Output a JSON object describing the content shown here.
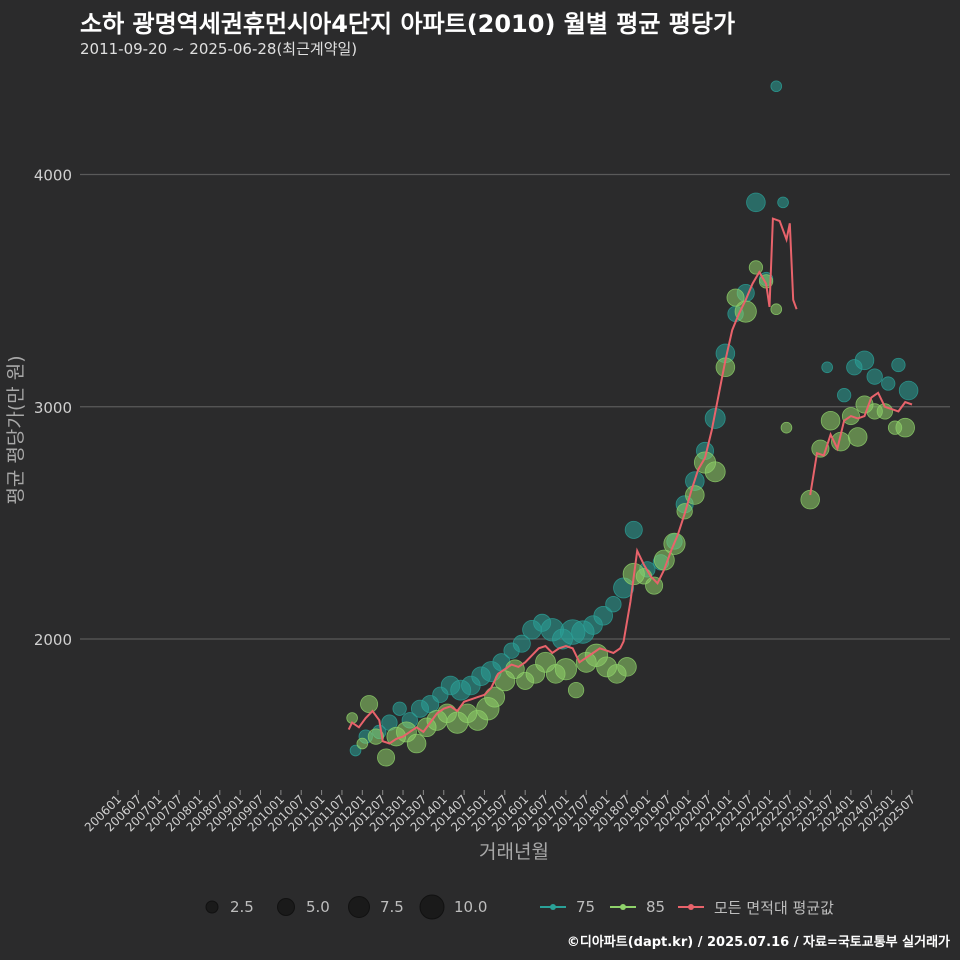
{
  "title": "소하 광명역세권휴먼시아4단지 아파트(2010) 월별 평균 평당가",
  "subtitle": "2011-09-20 ~ 2025-06-28(최근계약일)",
  "caption": "©디아파트(dapt.kr) / 2025.07.16 / 자료=국토교통부 실거래가",
  "colors": {
    "background": "#2b2b2c",
    "grid": "#5a5a5a",
    "series_75": "#2aa198",
    "series_85": "#8fd26a",
    "avg_line": "#e8636b"
  },
  "chart_data": {
    "type": "scatter",
    "xlabel": "거래년월",
    "ylabel": "평균 평당가(만 원)",
    "ylim": [
      1350,
      4450
    ],
    "yticks": [
      2000,
      3000,
      4000
    ],
    "ytick_labels": [
      "2000",
      "3000",
      "4000"
    ],
    "x_range": [
      "2006-01",
      "2025-07"
    ],
    "xtick_labels": [
      "200601",
      "200607",
      "200701",
      "200707",
      "200801",
      "200807",
      "200901",
      "200907",
      "201001",
      "201007",
      "201101",
      "201107",
      "201201",
      "201207",
      "201301",
      "201307",
      "201401",
      "201407",
      "201501",
      "201507",
      "201601",
      "201607",
      "201701",
      "201707",
      "201801",
      "201807",
      "201901",
      "201907",
      "202001",
      "202007",
      "202101",
      "202107",
      "202201",
      "202207",
      "202301",
      "202307",
      "202401",
      "202407",
      "202501",
      "202507"
    ],
    "size_legend": {
      "values": [
        2.5,
        5.0,
        7.5,
        10.0
      ],
      "labels": [
        "2.5",
        "5.0",
        "7.5",
        "10.0"
      ]
    },
    "series": [
      {
        "name": "75",
        "points": [
          [
            "2011-11",
            1520,
            1
          ],
          [
            "2012-02",
            1580,
            2
          ],
          [
            "2012-06",
            1600,
            2
          ],
          [
            "2012-09",
            1640,
            3
          ],
          [
            "2012-12",
            1700,
            2
          ],
          [
            "2013-03",
            1650,
            3
          ],
          [
            "2013-06",
            1700,
            4
          ],
          [
            "2013-09",
            1720,
            4
          ],
          [
            "2013-12",
            1760,
            3
          ],
          [
            "2014-03",
            1800,
            5
          ],
          [
            "2014-06",
            1780,
            6
          ],
          [
            "2014-09",
            1800,
            5
          ],
          [
            "2014-12",
            1840,
            5
          ],
          [
            "2015-03",
            1860,
            6
          ],
          [
            "2015-06",
            1900,
            4
          ],
          [
            "2015-09",
            1950,
            3
          ],
          [
            "2015-12",
            1980,
            4
          ],
          [
            "2016-03",
            2040,
            5
          ],
          [
            "2016-06",
            2070,
            4
          ],
          [
            "2016-09",
            2040,
            8
          ],
          [
            "2016-12",
            2000,
            6
          ],
          [
            "2017-03",
            2030,
            10
          ],
          [
            "2017-06",
            2030,
            8
          ],
          [
            "2017-09",
            2060,
            5
          ],
          [
            "2017-12",
            2100,
            5
          ],
          [
            "2018-03",
            2150,
            3
          ],
          [
            "2018-06",
            2220,
            6
          ],
          [
            "2018-09",
            2470,
            4
          ],
          [
            "2019-01",
            2300,
            3
          ],
          [
            "2019-05",
            2330,
            3
          ],
          [
            "2019-09",
            2420,
            3
          ],
          [
            "2019-12",
            2580,
            4
          ],
          [
            "2020-03",
            2680,
            5
          ],
          [
            "2020-06",
            2810,
            4
          ],
          [
            "2020-09",
            2950,
            6
          ],
          [
            "2020-12",
            3230,
            5
          ],
          [
            "2021-03",
            3400,
            3
          ],
          [
            "2021-06",
            3490,
            4
          ],
          [
            "2021-09",
            3880,
            5
          ],
          [
            "2021-12",
            3550,
            2
          ],
          [
            "2022-03",
            4380,
            1
          ],
          [
            "2022-05",
            3880,
            1
          ],
          [
            "2023-06",
            3170,
            1
          ],
          [
            "2023-11",
            3050,
            2
          ],
          [
            "2024-02",
            3170,
            3
          ],
          [
            "2024-05",
            3200,
            5
          ],
          [
            "2024-08",
            3130,
            3
          ],
          [
            "2024-12",
            3100,
            2
          ],
          [
            "2025-03",
            3180,
            2
          ],
          [
            "2025-06",
            3070,
            5
          ]
        ]
      },
      {
        "name": "85",
        "points": [
          [
            "2011-10",
            1660,
            1
          ],
          [
            "2012-01",
            1550,
            1
          ],
          [
            "2012-03",
            1720,
            4
          ],
          [
            "2012-05",
            1580,
            3
          ],
          [
            "2012-08",
            1490,
            4
          ],
          [
            "2012-11",
            1580,
            5
          ],
          [
            "2013-02",
            1600,
            6
          ],
          [
            "2013-05",
            1550,
            5
          ],
          [
            "2013-08",
            1620,
            5
          ],
          [
            "2013-11",
            1650,
            6
          ],
          [
            "2014-02",
            1680,
            5
          ],
          [
            "2014-05",
            1640,
            7
          ],
          [
            "2014-08",
            1680,
            5
          ],
          [
            "2014-11",
            1650,
            6
          ],
          [
            "2015-02",
            1700,
            8
          ],
          [
            "2015-04",
            1750,
            6
          ],
          [
            "2015-07",
            1820,
            6
          ],
          [
            "2015-10",
            1870,
            5
          ],
          [
            "2016-01",
            1820,
            4
          ],
          [
            "2016-04",
            1850,
            5
          ],
          [
            "2016-07",
            1900,
            6
          ],
          [
            "2016-10",
            1850,
            5
          ],
          [
            "2017-01",
            1870,
            7
          ],
          [
            "2017-04",
            1780,
            3
          ],
          [
            "2017-07",
            1900,
            6
          ],
          [
            "2017-10",
            1930,
            8
          ],
          [
            "2018-01",
            1880,
            6
          ],
          [
            "2018-04",
            1850,
            5
          ],
          [
            "2018-07",
            1880,
            5
          ],
          [
            "2018-09",
            2280,
            7
          ],
          [
            "2018-12",
            2270,
            3
          ],
          [
            "2019-03",
            2230,
            4
          ],
          [
            "2019-06",
            2340,
            6
          ],
          [
            "2019-09",
            2410,
            7
          ],
          [
            "2019-12",
            2550,
            3
          ],
          [
            "2020-03",
            2620,
            5
          ],
          [
            "2020-06",
            2760,
            7
          ],
          [
            "2020-09",
            2720,
            6
          ],
          [
            "2020-12",
            3170,
            5
          ],
          [
            "2021-03",
            3470,
            4
          ],
          [
            "2021-06",
            3410,
            7
          ],
          [
            "2021-09",
            3600,
            2
          ],
          [
            "2021-12",
            3540,
            2
          ],
          [
            "2022-03",
            3420,
            1
          ],
          [
            "2022-06",
            2910,
            1
          ],
          [
            "2023-01",
            2600,
            5
          ],
          [
            "2023-04",
            2820,
            4
          ],
          [
            "2023-07",
            2940,
            5
          ],
          [
            "2023-10",
            2850,
            5
          ],
          [
            "2024-01",
            2960,
            4
          ],
          [
            "2024-03",
            2870,
            5
          ],
          [
            "2024-05",
            3010,
            4
          ],
          [
            "2024-08",
            2980,
            3
          ],
          [
            "2024-11",
            2980,
            3
          ],
          [
            "2025-02",
            2910,
            2
          ],
          [
            "2025-05",
            2910,
            5
          ]
        ]
      }
    ],
    "average": [
      [
        [
          "2011-09",
          1610
        ],
        [
          "2011-10",
          1640
        ],
        [
          "2011-12",
          1620
        ],
        [
          "2012-02",
          1660
        ],
        [
          "2012-04",
          1690
        ],
        [
          "2012-06",
          1650
        ],
        [
          "2012-07",
          1560
        ],
        [
          "2012-09",
          1550
        ],
        [
          "2012-11",
          1570
        ],
        [
          "2013-01",
          1580
        ],
        [
          "2013-03",
          1600
        ],
        [
          "2013-05",
          1620
        ],
        [
          "2013-07",
          1600
        ],
        [
          "2013-09",
          1640
        ],
        [
          "2013-11",
          1680
        ],
        [
          "2014-01",
          1700
        ],
        [
          "2014-03",
          1710
        ],
        [
          "2014-05",
          1690
        ],
        [
          "2014-07",
          1730
        ],
        [
          "2014-09",
          1740
        ],
        [
          "2014-11",
          1750
        ],
        [
          "2015-01",
          1760
        ],
        [
          "2015-03",
          1790
        ],
        [
          "2015-05",
          1850
        ],
        [
          "2015-07",
          1870
        ],
        [
          "2015-09",
          1890
        ],
        [
          "2015-11",
          1880
        ],
        [
          "2016-01",
          1900
        ],
        [
          "2016-03",
          1930
        ],
        [
          "2016-05",
          1960
        ],
        [
          "2016-07",
          1970
        ],
        [
          "2016-09",
          1940
        ],
        [
          "2016-11",
          1960
        ],
        [
          "2017-01",
          1970
        ],
        [
          "2017-03",
          1960
        ],
        [
          "2017-05",
          1900
        ],
        [
          "2017-07",
          1920
        ],
        [
          "2017-09",
          1940
        ],
        [
          "2017-11",
          1960
        ],
        [
          "2018-01",
          1950
        ],
        [
          "2018-03",
          1940
        ],
        [
          "2018-05",
          1960
        ],
        [
          "2018-06",
          1990
        ],
        [
          "2018-08",
          2160
        ],
        [
          "2018-10",
          2380
        ],
        [
          "2018-12",
          2320
        ],
        [
          "2019-02",
          2270
        ],
        [
          "2019-04",
          2240
        ],
        [
          "2019-06",
          2300
        ],
        [
          "2019-08",
          2380
        ],
        [
          "2019-10",
          2450
        ],
        [
          "2019-12",
          2540
        ],
        [
          "2020-02",
          2640
        ],
        [
          "2020-04",
          2730
        ],
        [
          "2020-06",
          2780
        ],
        [
          "2020-08",
          2900
        ],
        [
          "2020-10",
          3050
        ],
        [
          "2020-12",
          3200
        ],
        [
          "2021-02",
          3330
        ],
        [
          "2021-04",
          3400
        ],
        [
          "2021-06",
          3460
        ],
        [
          "2021-08",
          3530
        ],
        [
          "2021-10",
          3580
        ],
        [
          "2021-12",
          3530
        ],
        [
          "2022-01",
          3430
        ],
        [
          "2022-02",
          3810
        ],
        [
          "2022-04",
          3800
        ],
        [
          "2022-06",
          3720
        ],
        [
          "2022-07",
          3790
        ],
        [
          "2022-08",
          3460
        ],
        [
          "2022-09",
          3420
        ]
      ],
      [
        [
          "2023-01",
          2620
        ],
        [
          "2023-03",
          2800
        ],
        [
          "2023-05",
          2790
        ],
        [
          "2023-07",
          2880
        ],
        [
          "2023-09",
          2820
        ],
        [
          "2023-11",
          2940
        ],
        [
          "2024-01",
          2960
        ],
        [
          "2024-03",
          2950
        ],
        [
          "2024-05",
          2960
        ],
        [
          "2024-07",
          3040
        ],
        [
          "2024-09",
          3060
        ],
        [
          "2024-11",
          3000
        ],
        [
          "2025-01",
          2990
        ],
        [
          "2025-03",
          2980
        ],
        [
          "2025-05",
          3020
        ],
        [
          "2025-07",
          3010
        ]
      ]
    ]
  }
}
